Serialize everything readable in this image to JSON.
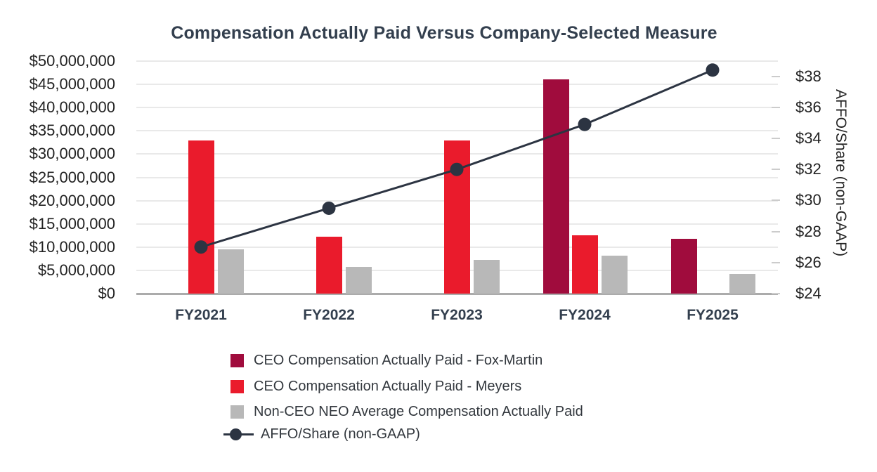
{
  "title": "Compensation Actually Paid Versus Company-Selected Measure",
  "colors": {
    "background": "#FFFFFF",
    "title_text": "#333F4E",
    "axis_text": "#222222",
    "x_label_text": "#333F4E",
    "legend_text": "#33383E",
    "gridline": "#E9E9E9",
    "baseline": "#ABABAB",
    "right_tick": "#CCCCCC",
    "fox_martin_bar": "#A00C3D",
    "meyers_bar": "#EA1B2C",
    "non_ceo_bar": "#B8B8B8",
    "affo_line": "#2C3442"
  },
  "chart_data": {
    "type": "bar",
    "subtype": "grouped-bar-with-line-combo",
    "title": "Compensation Actually Paid Versus Company-Selected Measure",
    "categories": [
      "FY2021",
      "FY2022",
      "FY2023",
      "FY2024",
      "FY2025"
    ],
    "series": [
      {
        "name": "CEO Compensation Actually Paid - Fox-Martin",
        "type": "bar",
        "axis": "left",
        "color": "#A00C3D",
        "values": [
          0,
          0,
          0,
          46000000,
          11800000
        ]
      },
      {
        "name": "CEO Compensation Actually Paid - Meyers",
        "type": "bar",
        "axis": "left",
        "color": "#EA1B2C",
        "values": [
          33000000,
          12300000,
          33000000,
          12500000,
          0
        ]
      },
      {
        "name": "Non-CEO NEO Average Compensation Actually Paid",
        "type": "bar",
        "axis": "left",
        "color": "#B8B8B8",
        "values": [
          9500000,
          5800000,
          7200000,
          8100000,
          4200000
        ]
      },
      {
        "name": "AFFO/Share (non-GAAP)",
        "type": "line",
        "axis": "right",
        "color": "#2C3442",
        "values": [
          27.0,
          29.5,
          32.0,
          34.9,
          38.4
        ]
      }
    ],
    "left_axis": {
      "min": 0,
      "max": 50000000,
      "step": 5000000,
      "tick_labels": [
        "$0",
        "$5,000,000",
        "$10,000,000",
        "$15,000,000",
        "$20,000,000",
        "$25,000,000",
        "$30,000,000",
        "$35,000,000",
        "$40,000,000",
        "$45,000,000",
        "$50,000,000"
      ]
    },
    "right_axis": {
      "min": 24,
      "max": 38,
      "step": 2,
      "label": "AFFO/Share (non-GAAP)",
      "tick_labels": [
        "$24",
        "$26",
        "$28",
        "$30",
        "$32",
        "$34",
        "$36",
        "$38"
      ]
    },
    "x_axis": {
      "tick_labels": [
        "FY2021",
        "FY2022",
        "FY2023",
        "FY2024",
        "FY2025"
      ]
    },
    "grid": "horizontal",
    "legend_position": "bottom"
  }
}
